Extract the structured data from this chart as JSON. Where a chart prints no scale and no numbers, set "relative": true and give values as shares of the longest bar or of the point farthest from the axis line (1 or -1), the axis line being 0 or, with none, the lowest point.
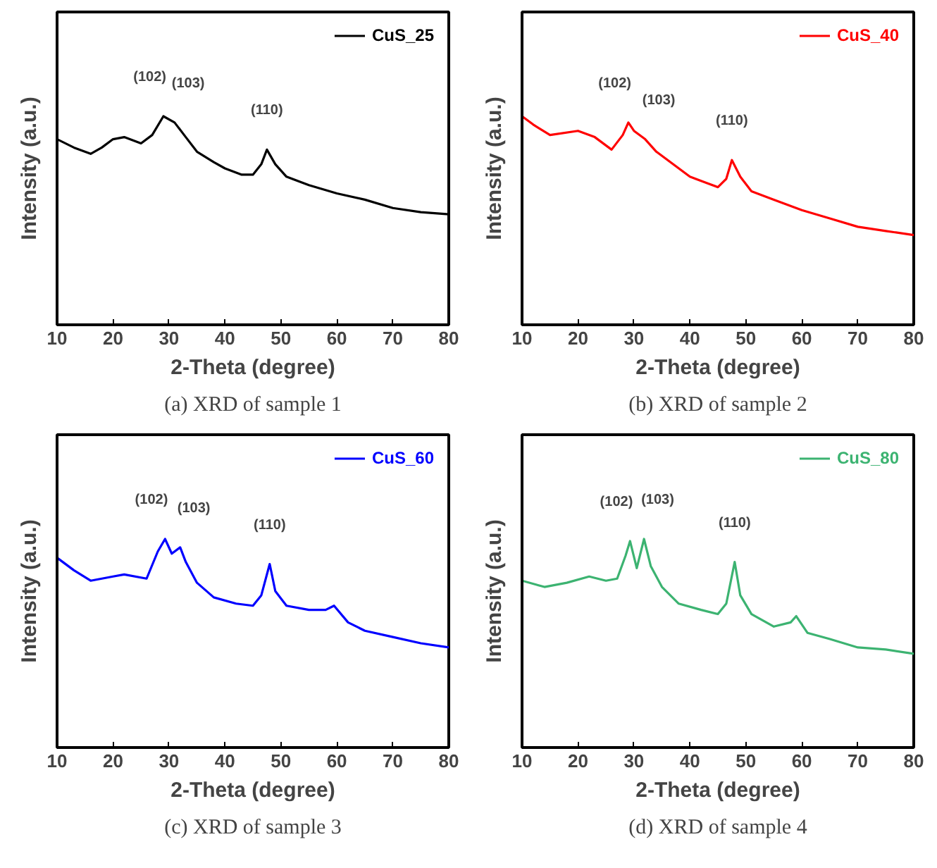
{
  "chart_data": [
    {
      "type": "line",
      "relative": true,
      "xlabel": "2-Theta (degree)",
      "ylabel": "Intensity (a.u.)",
      "xlim": [
        10,
        80
      ],
      "xticks": [
        10,
        20,
        30,
        40,
        50,
        60,
        70,
        80
      ],
      "legend": "top right",
      "grid": false,
      "line_style": "solid",
      "x": [
        10,
        13,
        16,
        18,
        20,
        22,
        25,
        27,
        29,
        31,
        33,
        35,
        38,
        40,
        43,
        45,
        46.5,
        47.5,
        49,
        51,
        55,
        60,
        65,
        70,
        75,
        80
      ],
      "series": [
        {
          "name": "CuS_25",
          "color": "#000000",
          "values": [
            0.89,
            0.85,
            0.82,
            0.85,
            0.89,
            0.9,
            0.87,
            0.91,
            1,
            0.97,
            0.9,
            0.83,
            0.78,
            0.75,
            0.72,
            0.72,
            0.77,
            0.84,
            0.77,
            0.71,
            0.67,
            0.63,
            0.6,
            0.56,
            0.54,
            0.53
          ]
        }
      ],
      "annotations": [
        {
          "text": "(102)",
          "x": 29,
          "y": 1
        },
        {
          "text": "(103)",
          "x": 31,
          "y": 0.97
        },
        {
          "text": "(110)",
          "x": 47.5,
          "y": 0.84
        },
        "(a) XRD of sample 1"
      ]
    },
    {
      "type": "line",
      "relative": true,
      "xlabel": "2-Theta (degree)",
      "ylabel": "Intensity (a.u.)",
      "xlim": [
        10,
        80
      ],
      "xticks": [
        10,
        20,
        30,
        40,
        50,
        60,
        70,
        80
      ],
      "legend": "top right",
      "grid": false,
      "line_style": "solid",
      "x": [
        10,
        12,
        15,
        20,
        23,
        26,
        28,
        29,
        30,
        32,
        34,
        37,
        40,
        43,
        45,
        46.5,
        47.5,
        49,
        51,
        55,
        60,
        65,
        70,
        75,
        80
      ],
      "series": [
        {
          "name": "CuS_40",
          "color": "#ff0000",
          "values": [
            1,
            0.96,
            0.91,
            0.93,
            0.9,
            0.84,
            0.91,
            0.97,
            0.93,
            0.89,
            0.83,
            0.77,
            0.71,
            0.68,
            0.66,
            0.7,
            0.79,
            0.71,
            0.64,
            0.6,
            0.55,
            0.51,
            0.47,
            0.45,
            0.43
          ]
        }
      ],
      "annotations": [
        {
          "text": "(102)",
          "x": 29,
          "y": 0.97
        },
        {
          "text": "(103)",
          "x": 32,
          "y": 0.89
        },
        {
          "text": "(110)",
          "x": 47.5,
          "y": 0.79
        },
        "(b) XRD of sample 2"
      ]
    },
    {
      "type": "line",
      "relative": true,
      "xlabel": "2-Theta (degree)",
      "ylabel": "Intensity (a.u.)",
      "xlim": [
        10,
        80
      ],
      "xticks": [
        10,
        20,
        30,
        40,
        50,
        60,
        70,
        80
      ],
      "legend": "top right",
      "grid": false,
      "line_style": "solid",
      "x": [
        10,
        13,
        16,
        20,
        22,
        26,
        28,
        29.3,
        30.5,
        32,
        33,
        35,
        38,
        42,
        45,
        46.5,
        48,
        49,
        51,
        55,
        58,
        59.5,
        62,
        65,
        70,
        75,
        80
      ],
      "series": [
        {
          "name": "CuS_60",
          "color": "#0000ff",
          "values": [
            0.91,
            0.85,
            0.8,
            0.82,
            0.83,
            0.81,
            0.94,
            1,
            0.93,
            0.96,
            0.89,
            0.79,
            0.72,
            0.69,
            0.68,
            0.73,
            0.88,
            0.75,
            0.68,
            0.66,
            0.66,
            0.68,
            0.6,
            0.56,
            0.53,
            0.5,
            0.48
          ]
        }
      ],
      "annotations": [
        {
          "text": "(102)",
          "x": 29.3,
          "y": 1
        },
        {
          "text": "(103)",
          "x": 32,
          "y": 0.96
        },
        {
          "text": "(110)",
          "x": 48,
          "y": 0.88
        },
        "(c) XRD of sample 3"
      ]
    },
    {
      "type": "line",
      "relative": true,
      "xlabel": "2-Theta (degree)",
      "ylabel": "Intensity (a.u.)",
      "xlim": [
        10,
        80
      ],
      "xticks": [
        10,
        20,
        30,
        40,
        50,
        60,
        70,
        80
      ],
      "legend": "top right",
      "grid": false,
      "line_style": "solid",
      "x": [
        10,
        14,
        18,
        22,
        25,
        27,
        28.5,
        29.3,
        30.5,
        31.8,
        33,
        35,
        38,
        42,
        45,
        46.5,
        48,
        49,
        51,
        55,
        58,
        59,
        61,
        65,
        70,
        75,
        80
      ],
      "series": [
        {
          "name": "CuS_80",
          "color": "#3cb371",
          "values": [
            0.8,
            0.77,
            0.79,
            0.82,
            0.8,
            0.81,
            0.92,
            0.99,
            0.86,
            1,
            0.87,
            0.77,
            0.69,
            0.66,
            0.64,
            0.69,
            0.89,
            0.73,
            0.64,
            0.58,
            0.6,
            0.63,
            0.55,
            0.52,
            0.48,
            0.47,
            0.45
          ]
        }
      ],
      "annotations": [
        {
          "text": "(102)",
          "x": 29.3,
          "y": 0.99
        },
        {
          "text": "(103)",
          "x": 31.8,
          "y": 1
        },
        {
          "text": "(110)",
          "x": 48,
          "y": 0.89
        },
        "(d) XRD of sample 4"
      ]
    }
  ]
}
